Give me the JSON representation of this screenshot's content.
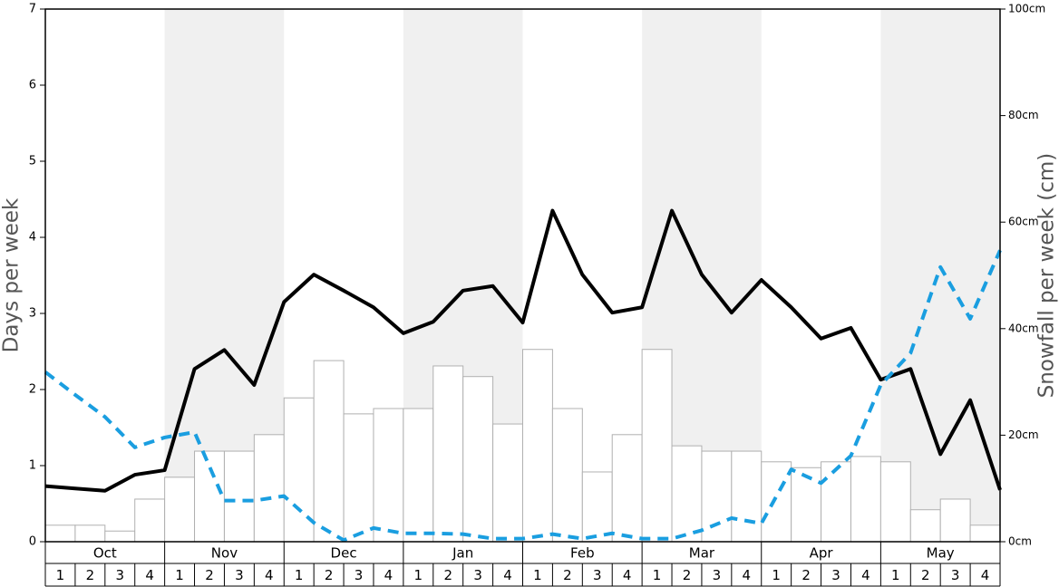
{
  "chart_data": {
    "type": "bar",
    "ylabel": "Days per week",
    "y2label": "Snowfall per week (cm)",
    "months": [
      "Oct",
      "Nov",
      "Dec",
      "Jan",
      "Feb",
      "Mar",
      "Apr",
      "May"
    ],
    "weeks": [
      1,
      2,
      3,
      4
    ],
    "ylim": [
      0,
      7
    ],
    "yticks": [
      0,
      1,
      2,
      3,
      4,
      5,
      6,
      7
    ],
    "y2lim": [
      0,
      100
    ],
    "y2ticks": [
      {
        "value": 0,
        "label": "0cm"
      },
      {
        "value": 20,
        "label": "20cm"
      },
      {
        "value": 40,
        "label": "40cm"
      },
      {
        "value": 60,
        "label": "60cm"
      },
      {
        "value": 80,
        "label": "80cm"
      },
      {
        "value": 100,
        "label": "100cm"
      }
    ],
    "band_color": "#f0f0f0",
    "series": [
      {
        "type": "bar",
        "axis": "y2",
        "color": "#ffffff",
        "edgecolor": "#b0b0b0",
        "values": [
          3.1,
          3.1,
          2.0,
          8.0,
          12.1,
          17.0,
          17.0,
          20.1,
          27.0,
          34.0,
          24.0,
          25.0,
          25.0,
          33.0,
          31.0,
          22.1,
          36.1,
          25.0,
          13.1,
          20.1,
          36.1,
          18.0,
          17.0,
          17.0,
          15.0,
          13.9,
          15.0,
          16.0,
          15.0,
          6.0,
          8.0,
          3.1
        ]
      },
      {
        "type": "line",
        "color": "#000000",
        "linestyle": "solid",
        "values": [
          0.73,
          0.7,
          0.67,
          0.88,
          0.94,
          2.27,
          2.52,
          2.06,
          3.15,
          3.51,
          3.3,
          3.08,
          2.74,
          2.89,
          3.3,
          3.36,
          2.88,
          4.35,
          3.51,
          3.01,
          3.08,
          4.35,
          3.51,
          3.01,
          3.44,
          3.08,
          2.67,
          2.81,
          2.13,
          2.27,
          1.15,
          1.86,
          0.68
        ]
      },
      {
        "type": "line",
        "color": "#1a9ee0",
        "linestyle": "dashed",
        "values": [
          2.23,
          1.93,
          1.64,
          1.24,
          1.37,
          1.44,
          0.54,
          0.54,
          0.6,
          0.25,
          0.02,
          0.18,
          0.11,
          0.11,
          0.1,
          0.04,
          0.04,
          0.1,
          0.04,
          0.11,
          0.04,
          0.04,
          0.15,
          0.31,
          0.24,
          0.95,
          0.77,
          1.13,
          2.06,
          2.48,
          3.61,
          2.93,
          3.83
        ]
      }
    ]
  }
}
